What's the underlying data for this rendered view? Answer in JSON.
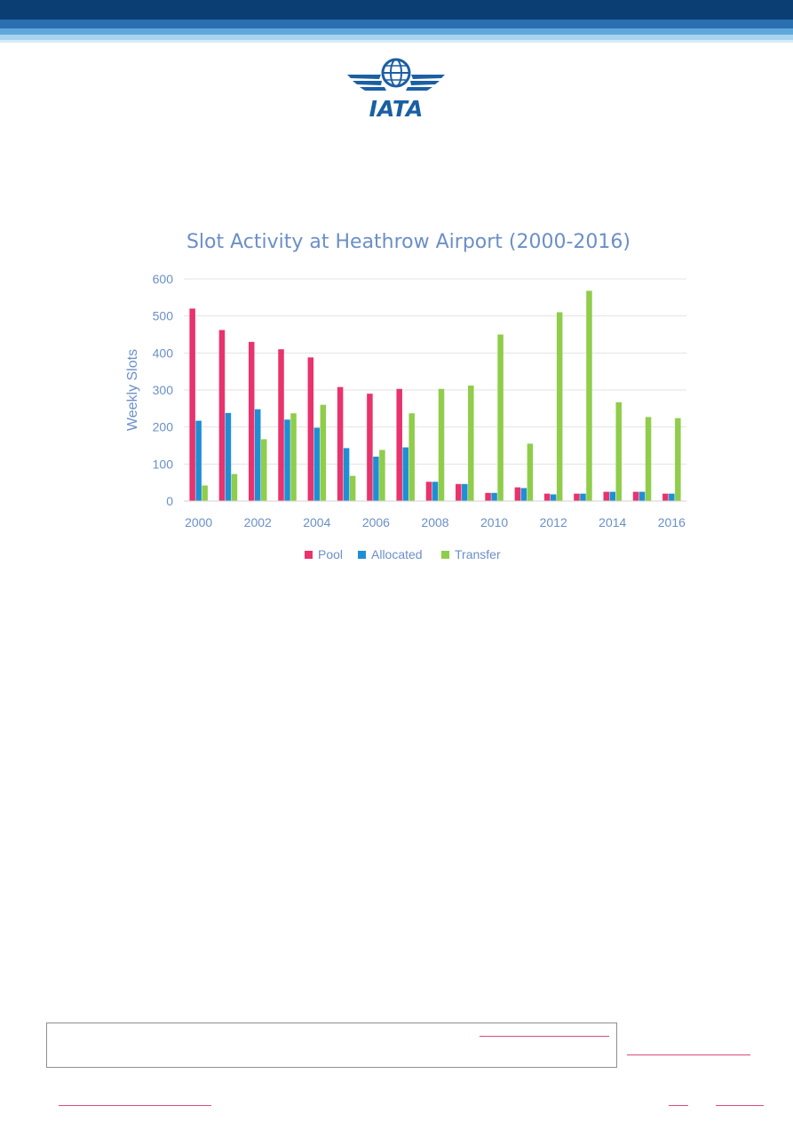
{
  "colors": {
    "pool": "#e8336d",
    "allocated": "#1f8fd4",
    "transfer": "#8fcd4b",
    "title": "#6b8fc7",
    "axis_text": "#6b8fc7",
    "gridline": "#e3e3e3",
    "header_dark": "#0b3f73",
    "brand_blue": "#1b5fa3"
  },
  "logo": {
    "text": "IATA",
    "icon": "iata-globe-wings-logo"
  },
  "chart_data": {
    "type": "bar",
    "title": "Slot Activity at Heathrow Airport (2000-2016)",
    "ylabel": "Weekly Slots",
    "xlabel": "",
    "ylim": [
      0,
      600
    ],
    "yticks": [
      0,
      100,
      200,
      300,
      400,
      500,
      600
    ],
    "categories": [
      "2000",
      "2001",
      "2002",
      "2003",
      "2004",
      "2005",
      "2006",
      "2007",
      "2008",
      "2009",
      "2010",
      "2011",
      "2012",
      "2013",
      "2014",
      "2015",
      "2016"
    ],
    "xtick_labels": [
      "2000",
      "2002",
      "2004",
      "2006",
      "2008",
      "2010",
      "2012",
      "2014",
      "2016"
    ],
    "grid": true,
    "legend_position": "bottom",
    "series": [
      {
        "name": "Pool",
        "values": [
          520,
          462,
          430,
          410,
          388,
          308,
          290,
          303,
          52,
          46,
          22,
          37,
          20,
          20,
          25,
          25,
          20
        ]
      },
      {
        "name": "Allocated",
        "values": [
          217,
          238,
          248,
          220,
          198,
          143,
          120,
          145,
          52,
          46,
          22,
          35,
          18,
          20,
          25,
          25,
          20
        ]
      },
      {
        "name": "Transfer",
        "values": [
          42,
          73,
          167,
          237,
          260,
          68,
          138,
          237,
          303,
          312,
          450,
          155,
          510,
          568,
          267,
          227,
          224
        ]
      }
    ]
  }
}
